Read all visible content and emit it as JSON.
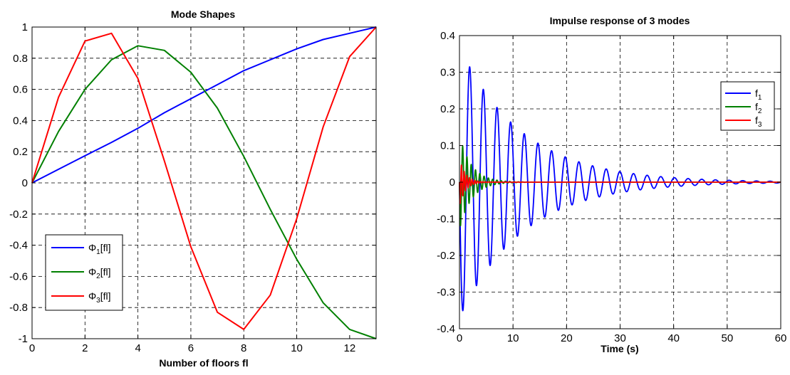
{
  "chart_data": [
    {
      "type": "line",
      "title": "Mode Shapes",
      "xlabel": "Number of floors fl",
      "ylabel": "",
      "xlim": [
        0,
        13
      ],
      "ylim": [
        -1,
        1
      ],
      "xticks": [
        0,
        2,
        4,
        6,
        8,
        10,
        12
      ],
      "yticks": [
        -1,
        -0.8,
        -0.6,
        -0.4,
        -0.2,
        0,
        0.2,
        0.4,
        0.6,
        0.8,
        1
      ],
      "x_tick_labels": [
        "0",
        "2",
        "4",
        "6",
        "8",
        "10",
        "12"
      ],
      "y_tick_labels": [
        "-1",
        "-0.8",
        "-0.6",
        "-0.4",
        "-0.2",
        "0",
        "0.2",
        "0.4",
        "0.6",
        "0.8",
        "1"
      ],
      "grid": true,
      "legend_position": "lower-left",
      "x": [
        0,
        1,
        2,
        3,
        4,
        5,
        6,
        7,
        8,
        9,
        10,
        11,
        12,
        13
      ],
      "series": [
        {
          "name": "Φ1[fl]",
          "label_main": "Φ",
          "label_sub": "1",
          "label_rest": "[fl]",
          "color": "#0000ff",
          "values": [
            0,
            0.087,
            0.174,
            0.26,
            0.35,
            0.45,
            0.54,
            0.63,
            0.72,
            0.79,
            0.86,
            0.92,
            0.96,
            1.0
          ]
        },
        {
          "name": "Φ2[fl]",
          "label_main": "Φ",
          "label_sub": "2",
          "label_rest": "[fl]",
          "color": "#008000",
          "values": [
            0,
            0.33,
            0.6,
            0.79,
            0.88,
            0.85,
            0.71,
            0.48,
            0.17,
            -0.17,
            -0.49,
            -0.77,
            -0.94,
            -1.0
          ]
        },
        {
          "name": "Φ3[fl]",
          "label_main": "Φ",
          "label_sub": "3",
          "label_rest": "[fl]",
          "color": "#ff0000",
          "values": [
            0,
            0.55,
            0.91,
            0.96,
            0.67,
            0.14,
            -0.41,
            -0.83,
            -0.94,
            -0.72,
            -0.23,
            0.36,
            0.81,
            1.0
          ]
        }
      ]
    },
    {
      "type": "line",
      "title": "Impulse response of 3 modes",
      "xlabel": "Time (s)",
      "ylabel": "",
      "xlim": [
        0,
        60
      ],
      "ylim": [
        -0.4,
        0.4
      ],
      "xticks": [
        0,
        10,
        20,
        30,
        40,
        50,
        60
      ],
      "yticks": [
        -0.4,
        -0.3,
        -0.2,
        -0.1,
        0,
        0.1,
        0.2,
        0.3,
        0.4
      ],
      "x_tick_labels": [
        "0",
        "10",
        "20",
        "30",
        "40",
        "50",
        "60"
      ],
      "y_tick_labels": [
        "-0.4",
        "-0.3",
        "-0.2",
        "-0.1",
        "0",
        "0.1",
        "0.2",
        "0.3",
        "0.4"
      ],
      "grid": true,
      "legend_position": "top-right",
      "series": [
        {
          "name": "f1",
          "label_main": "f",
          "label_sub": "1",
          "color": "#0000ff",
          "model": {
            "amplitude": 0.37,
            "period_s": 2.55,
            "decay_per_s": 0.085
          },
          "peaks": [
            [
              0.65,
              -0.37
            ],
            [
              1.9,
              0.315
            ],
            [
              3.2,
              -0.27
            ],
            [
              4.45,
              0.23
            ],
            [
              5.75,
              -0.2
            ],
            [
              7.0,
              0.165
            ],
            [
              8.3,
              -0.15
            ],
            [
              9.55,
              0.12
            ],
            [
              10.85,
              -0.11
            ],
            [
              12.1,
              0.09
            ],
            [
              13.4,
              -0.08
            ],
            [
              14.65,
              0.065
            ],
            [
              15.9,
              -0.055
            ],
            [
              17.2,
              0.045
            ],
            [
              18.5,
              -0.04
            ],
            [
              19.75,
              0.035
            ],
            [
              21.0,
              -0.03
            ],
            [
              22.3,
              0.025
            ],
            [
              23.6,
              -0.02
            ],
            [
              24.85,
              0.017
            ],
            [
              26.1,
              -0.014
            ],
            [
              27.4,
              0.012
            ],
            [
              28.7,
              -0.01
            ],
            [
              30.0,
              0.008
            ],
            [
              31.2,
              -0.007
            ],
            [
              32.5,
              0.006
            ],
            [
              33.8,
              -0.005
            ],
            [
              35.0,
              0.004
            ],
            [
              36.3,
              -0.004
            ],
            [
              37.6,
              0.003
            ],
            [
              38.9,
              -0.003
            ],
            [
              40.1,
              0.002
            ]
          ]
        },
        {
          "name": "f2",
          "label_main": "f",
          "label_sub": "2",
          "color": "#008000",
          "model": {
            "amplitude": 0.13,
            "period_s": 0.8,
            "decay_per_s": 0.45
          }
        },
        {
          "name": "f3",
          "label_main": "f",
          "label_sub": "3",
          "color": "#ff0000",
          "model": {
            "amplitude": 0.065,
            "period_s": 0.5,
            "decay_per_s": 0.9
          }
        }
      ]
    }
  ]
}
